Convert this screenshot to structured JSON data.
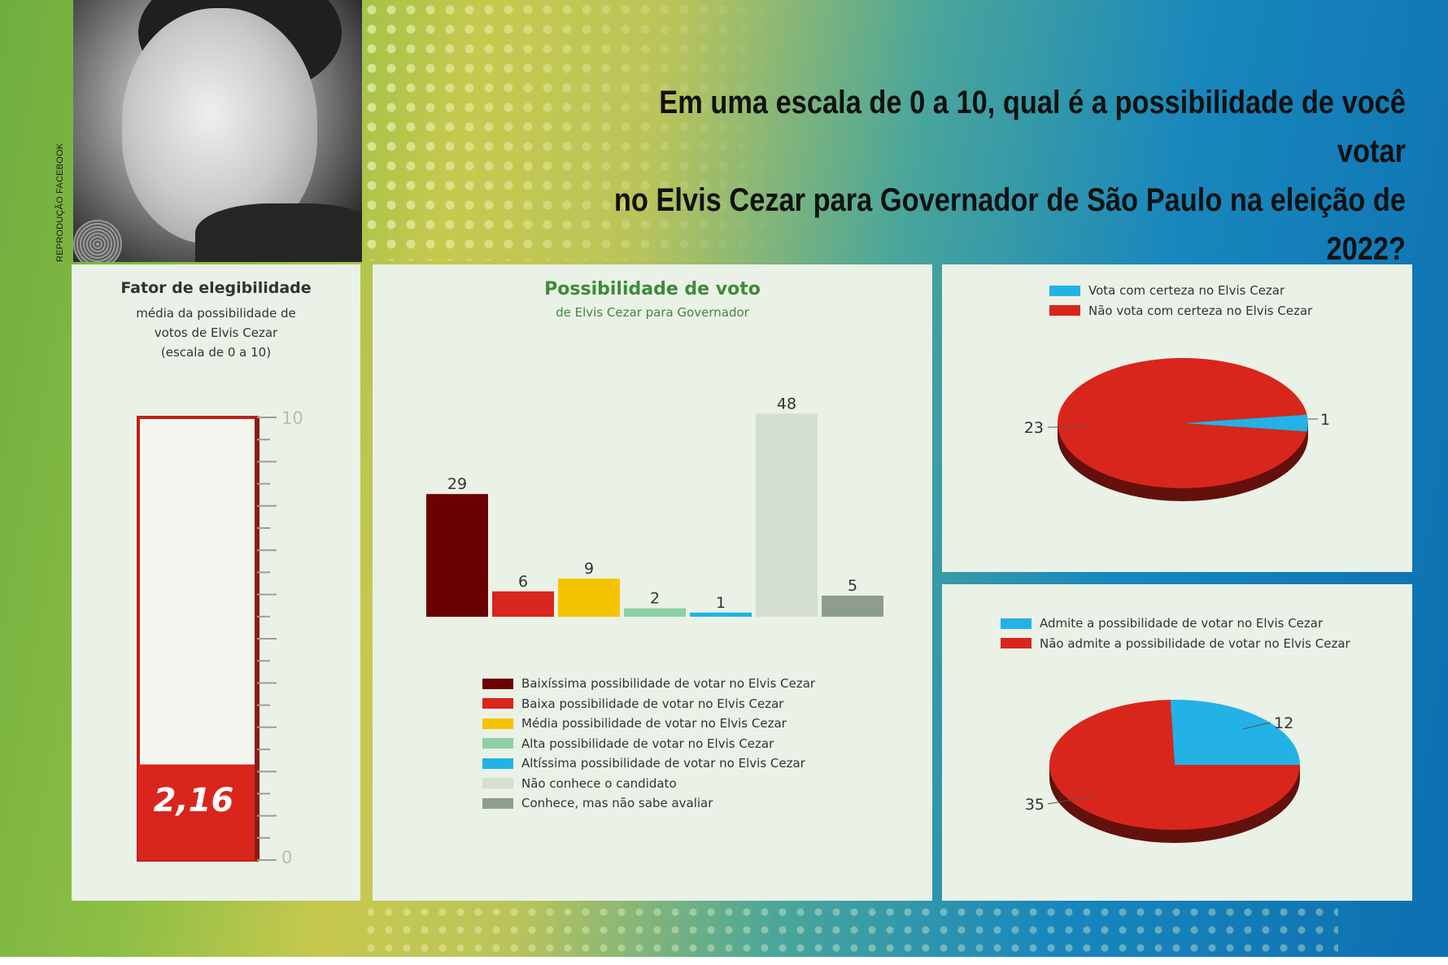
{
  "photo_credit": "REPRODUÇÃO FACEBOOK",
  "question_line1": "Em uma escala de 0 a 10, qual é a possibilidade de você votar",
  "question_line2": "no Elvis Cezar para Governador de São Paulo na eleição de 2022?",
  "colors": {
    "dark_red": "#6b0000",
    "red": "#d9261c",
    "yellow": "#f5c400",
    "light_green": "#8ed0a4",
    "cyan": "#23b2e6",
    "pale": "#d5dfcf",
    "gray_green": "#8f9e8c",
    "panel_bg": "#eaf1e6"
  },
  "chart_data": [
    {
      "type": "gauge",
      "title": "Fator de elegibilidade",
      "subtitle_lines": [
        "média da possibilidade de",
        "votos de Elvis Cezar",
        "(escala de 0 a 10)"
      ],
      "value": 2.16,
      "value_label": "2,16",
      "min": 0,
      "max": 10,
      "tick_labels": [
        "10",
        "0"
      ]
    },
    {
      "type": "bar",
      "title": "Possibilidade de voto",
      "subtitle": "de Elvis Cezar para Governador",
      "categories": [
        "Baixíssima possibilidade de votar no Elvis Cezar",
        "Baixa possibilidade de votar no Elvis Cezar",
        "Média possibilidade de votar no Elvis Cezar",
        "Alta possibilidade de votar no Elvis Cezar",
        "Altíssima possibilidade de votar no Elvis Cezar",
        "Não conhece o candidato",
        "Conhece, mas não sabe avaliar"
      ],
      "values": [
        29,
        6,
        9,
        2,
        1,
        48,
        5
      ],
      "value_labels": [
        "29",
        "6",
        "9",
        "2",
        "1",
        "48",
        "5"
      ],
      "bar_colors": [
        "#6b0000",
        "#d9261c",
        "#f5c400",
        "#8ed0a4",
        "#23b2e6",
        "#d5dfcf",
        "#8f9e8c"
      ],
      "legend_position": "bottom"
    },
    {
      "type": "pie",
      "labels": [
        "Vota com certeza no Elvis Cezar",
        "Não vota com certeza no Elvis Cezar"
      ],
      "values": [
        1,
        23
      ],
      "value_labels": [
        "1",
        "23"
      ],
      "slice_colors": [
        "#23b2e6",
        "#d9261c"
      ],
      "legend_position": "top"
    },
    {
      "type": "pie",
      "labels": [
        "Admite a possibilidade de votar no Elvis Cezar",
        "Não admite a possibilidade de votar no Elvis Cezar"
      ],
      "values": [
        12,
        35
      ],
      "value_labels": [
        "12",
        "35"
      ],
      "slice_colors": [
        "#23b2e6",
        "#d9261c"
      ],
      "legend_position": "top"
    }
  ]
}
